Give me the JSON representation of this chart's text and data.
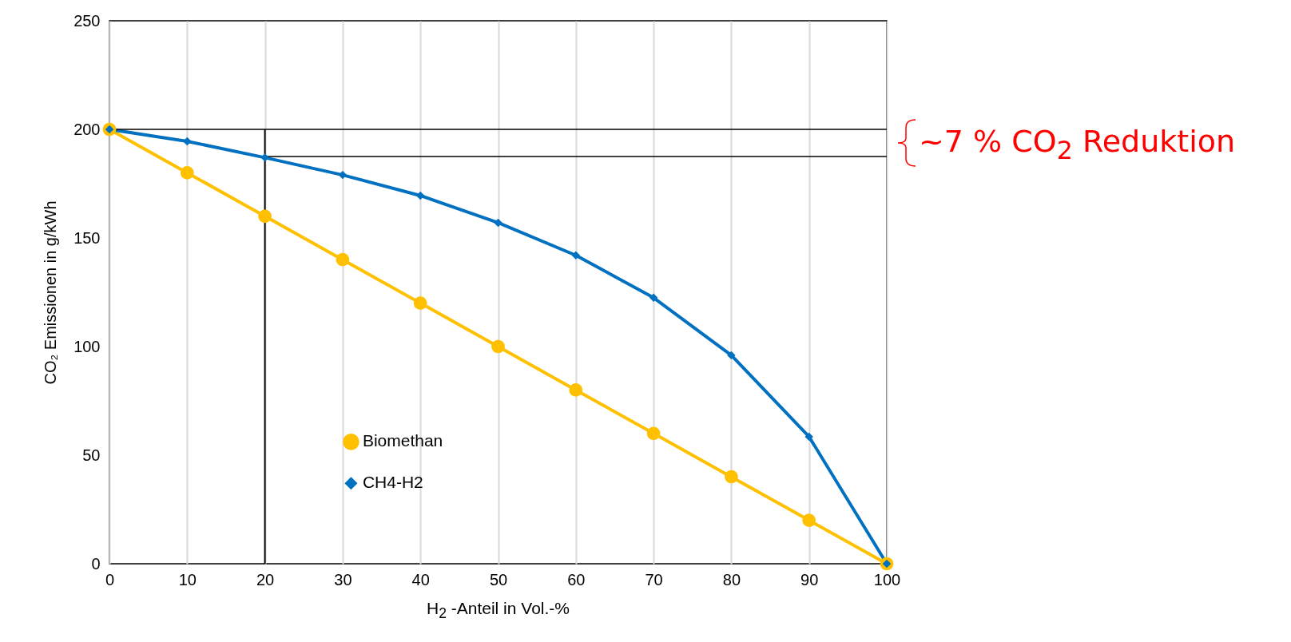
{
  "chart_data": {
    "type": "line",
    "x": [
      0,
      10,
      20,
      30,
      40,
      50,
      60,
      70,
      80,
      90,
      100
    ],
    "series": [
      {
        "name": "Biomethan",
        "color": "#ffc000",
        "marker": "circle",
        "values": [
          200,
          180,
          160,
          140,
          120,
          100,
          80,
          60,
          40,
          20,
          0
        ]
      },
      {
        "name": "CH4-H2",
        "color": "#0070c0",
        "marker": "diamond",
        "values": [
          200,
          194.5,
          187,
          179,
          169.5,
          157,
          142,
          122.5,
          96,
          58.5,
          0
        ]
      }
    ],
    "xlabel": "H$_{2}$ -Anteil in Vol.-%",
    "ylabel": "CO₂ Emissionen in g/kWh",
    "xlim": [
      0,
      100
    ],
    "xticks": [
      0,
      10,
      20,
      30,
      40,
      50,
      60,
      70,
      80,
      90,
      100
    ],
    "ylim": [
      0,
      250
    ],
    "yticks": [
      0,
      50,
      100,
      150,
      200,
      250
    ],
    "grid": "x",
    "legend": "bottom left",
    "line_style": "solid",
    "ref_lines": [
      {
        "axis": "x",
        "value": 20,
        "color": "#000000"
      },
      {
        "axis": "y",
        "value": 200,
        "color": "#000000"
      },
      {
        "axis": "y",
        "value": 187.5,
        "color": "#000000"
      }
    ],
    "annotations": [
      "~7 % CO$_{2}$ Reduktion"
    ]
  }
}
